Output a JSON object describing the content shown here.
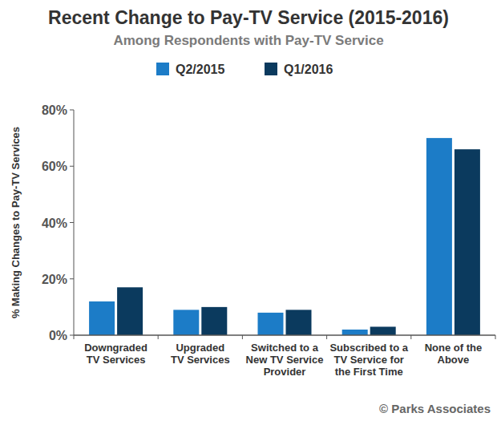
{
  "chart_data": {
    "type": "bar",
    "title": "Recent Change to Pay-TV Service (2015-2016)",
    "subtitle": "Among Respondents with Pay-TV Service",
    "y_label": "% Making Changes to Pay-TV Services",
    "categories": [
      "Downgraded\nTV Services",
      "Upgraded\nTV Services",
      "Switched to a\nNew TV Service\nProvider",
      "Subscribed to a\nTV Service for\nthe First Time",
      "None of the\nAbove"
    ],
    "series": [
      {
        "name": "Q2/2015",
        "color": "#1c7cc7",
        "values": [
          12,
          9,
          8,
          2,
          70
        ]
      },
      {
        "name": "Q1/2016",
        "color": "#0b3a5e",
        "values": [
          17,
          10,
          9,
          3,
          66
        ]
      }
    ],
    "ylim": [
      0,
      80
    ],
    "yticks": [
      {
        "value": 0,
        "label": "0%"
      },
      {
        "value": 20,
        "label": "20%"
      },
      {
        "value": 40,
        "label": "40%"
      },
      {
        "value": 60,
        "label": "60%"
      },
      {
        "value": 80,
        "label": "80%"
      }
    ],
    "grid": false,
    "legend": "top",
    "annotations": [
      "© Parks Associates"
    ]
  }
}
